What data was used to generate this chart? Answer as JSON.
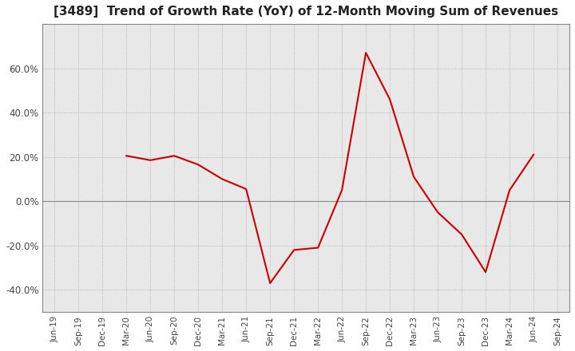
{
  "title": "[3489]  Trend of Growth Rate (YoY) of 12-Month Moving Sum of Revenues",
  "title_fontsize": 11,
  "line_color": "#cc0000",
  "bg_color": "#ffffff",
  "grid_color": "#aaaaaa",
  "plot_bg_color": "#e8e8e8",
  "ylim": [
    -0.5,
    0.8
  ],
  "yticks": [
    -0.4,
    -0.2,
    0.0,
    0.2,
    0.4,
    0.6
  ],
  "ytick_labels": [
    "-40.0%",
    "-20.0%",
    "0.0%",
    "20.0%",
    "40.0%",
    "60.0%"
  ],
  "values": [
    null,
    null,
    null,
    0.205,
    0.185,
    0.205,
    0.165,
    0.1,
    0.055,
    -0.37,
    -0.22,
    -0.21,
    0.05,
    0.67,
    0.46,
    0.11,
    -0.05,
    -0.15,
    -0.32,
    0.05,
    0.21,
    null
  ],
  "xtick_labels": [
    "Jun-19",
    "Sep-19",
    "Dec-19",
    "Mar-20",
    "Jun-20",
    "Sep-20",
    "Dec-20",
    "Mar-21",
    "Jun-21",
    "Sep-21",
    "Dec-21",
    "Mar-22",
    "Jun-22",
    "Sep-22",
    "Dec-22",
    "Mar-23",
    "Jun-23",
    "Sep-23",
    "Dec-23",
    "Mar-24",
    "Jun-24",
    "Sep-24"
  ]
}
